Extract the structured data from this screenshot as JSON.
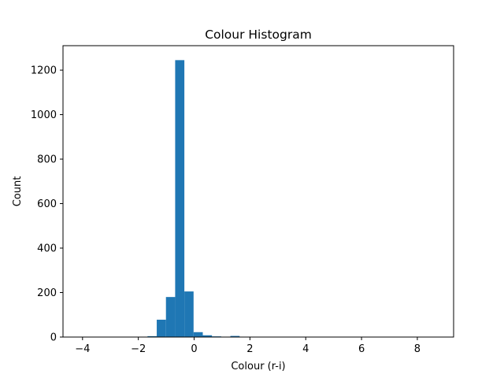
{
  "chart_data": {
    "type": "bar",
    "title": "Colour Histogram",
    "xlabel": "Colour (r-i)",
    "ylabel": "Count",
    "xlim": [
      -4.7,
      9.3
    ],
    "ylim": [
      0,
      1310
    ],
    "x_ticks": [
      {
        "value": -4,
        "label": "−4"
      },
      {
        "value": -2,
        "label": "−2"
      },
      {
        "value": 0,
        "label": "0"
      },
      {
        "value": 2,
        "label": "2"
      },
      {
        "value": 4,
        "label": "4"
      },
      {
        "value": 6,
        "label": "6"
      },
      {
        "value": 8,
        "label": "8"
      }
    ],
    "y_ticks": [
      {
        "value": 0,
        "label": "0"
      },
      {
        "value": 200,
        "label": "200"
      },
      {
        "value": 400,
        "label": "400"
      },
      {
        "value": 600,
        "label": "600"
      },
      {
        "value": 800,
        "label": "800"
      },
      {
        "value": 1000,
        "label": "1000"
      },
      {
        "value": 1200,
        "label": "1200"
      }
    ],
    "bin_edges": [
      -1.67,
      -1.34,
      -1.01,
      -0.68,
      -0.35,
      -0.02,
      0.31,
      0.64,
      0.97,
      1.3,
      1.63
    ],
    "counts": [
      4,
      78,
      180,
      1245,
      205,
      22,
      8,
      3,
      1,
      5
    ],
    "bar_color": "#1f77b4",
    "grid": false,
    "legend": "none"
  }
}
